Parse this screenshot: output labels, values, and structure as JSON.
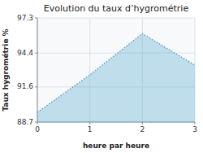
{
  "chart_data": {
    "type": "area",
    "title": "Evolution du taux d’hygrométrie",
    "xlabel": "heure par heure",
    "ylabel": "Taux hygrométrie %",
    "x": [
      0,
      1,
      2,
      3
    ],
    "values": [
      89.5,
      92.6,
      96.0,
      93.4
    ],
    "xlim": [
      0,
      3
    ],
    "ylim": [
      88.7,
      97.3
    ],
    "xticks": [
      0,
      1,
      2,
      3
    ],
    "yticks": [
      88.7,
      91.6,
      94.4,
      97.3
    ],
    "grid": true,
    "color": "#55aacc",
    "line_style": "dotted"
  }
}
